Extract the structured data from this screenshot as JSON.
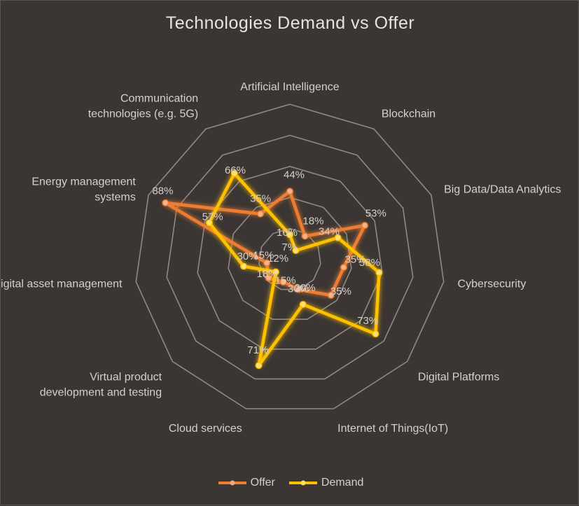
{
  "chart_data": {
    "type": "radar",
    "title": "Technologies  Demand vs Offer",
    "categories": [
      "Artificial Intelligence",
      "Blockchain",
      "Big Data/Data Analytics",
      "Cybersecurity",
      "Digital Platforms",
      "Internet of Things(IoT)",
      "Cloud services",
      "Virtual product development and testing",
      "Digital asset management",
      "Energy management systems",
      "Communication technologies (e.g. 5G)"
    ],
    "series": [
      {
        "name": "Offer",
        "color": "#ed7d31",
        "values": [
          44,
          18,
          53,
          35,
          35,
          20,
          15,
          18,
          15,
          88,
          35
        ]
      },
      {
        "name": "Demand",
        "color": "#ffc000",
        "values": [
          16,
          7,
          34,
          58,
          73,
          30,
          71,
          12,
          30,
          57,
          66
        ]
      }
    ],
    "rmax": 100,
    "gridlines": 5,
    "legend": "bottom"
  }
}
